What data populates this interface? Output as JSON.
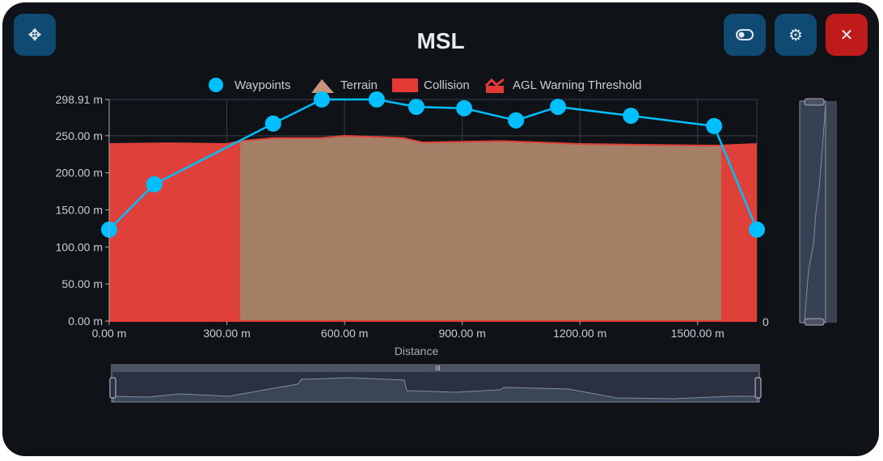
{
  "header": {
    "title": "MSL",
    "move_icon": "move-icon",
    "toggle_icon": "toggle-icon",
    "settings_icon": "gear-icon",
    "close_icon": "close-icon"
  },
  "colors": {
    "waypoint": "#00bfff",
    "terrain": "#a57f66",
    "collision": "#e0403a",
    "close": "#c01b1b",
    "button": "#0f4a73"
  },
  "chart_data": {
    "type": "line",
    "title": "MSL",
    "xlabel": "Distance",
    "ylabel": "",
    "xlim": [
      0,
      1651
    ],
    "ylim": [
      0,
      298.91
    ],
    "x_ticks": [
      "0.00 m",
      "300.00 m",
      "600.00 m",
      "900.00 m",
      "1200.00 m",
      "1500.00 m"
    ],
    "x_tick_values": [
      0,
      300,
      600,
      900,
      1200,
      1500
    ],
    "y_ticks": [
      "0.00 m",
      "50.00 m",
      "100.00 m",
      "150.00 m",
      "200.00 m",
      "250.00 m",
      "298.91 m"
    ],
    "y_tick_values": [
      0,
      50,
      100,
      150,
      200,
      250,
      298.91
    ],
    "right_axis_label": "0",
    "legend": [
      "Waypoints",
      "Terrain",
      "Collision",
      "AGL Warning Threshold"
    ],
    "legend_position": "top",
    "series": [
      {
        "name": "Waypoints",
        "x": [
          0,
          115,
          418,
          542,
          682,
          783,
          905,
          1037,
          1144,
          1330,
          1542,
          1651
        ],
        "y": [
          123.4,
          184.5,
          266.4,
          298.91,
          298.91,
          289,
          287,
          270.7,
          289,
          277,
          263,
          123.4
        ]
      },
      {
        "name": "Terrain",
        "x": [
          0,
          150,
          300,
          334,
          420,
          540,
          600,
          750,
          800,
          1000,
          1200,
          1500,
          1560,
          1651
        ],
        "y": [
          240,
          241,
          240,
          244,
          248,
          248,
          251,
          248,
          242,
          244,
          240,
          238,
          238,
          240
        ]
      },
      {
        "name": "Collision",
        "ranges": [
          [
            0,
            334
          ],
          [
            1560,
            1651
          ]
        ]
      }
    ]
  }
}
